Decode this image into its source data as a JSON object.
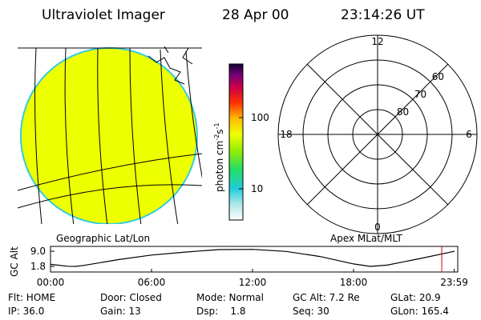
{
  "header": {
    "title": "Ultraviolet Imager",
    "date": "28 Apr 00",
    "time": "23:14:26 UT"
  },
  "image_panel": {
    "label": "Geographic Lat/Lon"
  },
  "colorbar": {
    "label_parts": [
      "photon cm",
      "-2",
      "s",
      "-1"
    ],
    "scale": "log",
    "lim": [
      3.65,
      566
    ],
    "ticks": [
      10,
      100
    ]
  },
  "polar_panel": {
    "label": "Apex MLat/MLT",
    "mlt_labels": [
      12,
      18,
      6,
      0
    ],
    "lat_labels": [
      60,
      70,
      80
    ]
  },
  "altitude_plot": {
    "type": "line",
    "ylabel": "GC Alt",
    "x": [
      0,
      1,
      1.5,
      2,
      4,
      6,
      8,
      10,
      12,
      14,
      16,
      18,
      19,
      20,
      22,
      24
    ],
    "values": [
      2.8,
      1.9,
      1.8,
      2.3,
      5.0,
      7.2,
      8.6,
      9.8,
      9.9,
      8.9,
      6.5,
      3.0,
      1.8,
      2.4,
      5.6,
      9.0
    ],
    "xlim": [
      0,
      24
    ],
    "ylim": [
      -0.85,
      11.3
    ],
    "yticks": [
      {
        "value": 9.0,
        "label": "9.0"
      },
      {
        "value": 1.8,
        "label": "1.8"
      }
    ],
    "xticks": [
      {
        "value": 0,
        "label": "00:00"
      },
      {
        "value": 6,
        "label": "06:00"
      },
      {
        "value": 12,
        "label": "12:00"
      },
      {
        "value": 18,
        "label": "18:00"
      },
      {
        "value": 23.98,
        "label": "23:59"
      }
    ],
    "marker_x": 23.24,
    "color": "#000000",
    "marker_color": "#dd0000"
  },
  "info": {
    "rows": [
      [
        "Flt: HOME",
        "Door: Closed",
        "Mode: Normal",
        "GC Alt: 7.2 Re",
        "GLat: 20.9"
      ],
      [
        "IP: 36.0",
        "Gain: 13",
        "Dsp:    1.8",
        "Seq: 30",
        "GLon: 165.4"
      ]
    ]
  }
}
